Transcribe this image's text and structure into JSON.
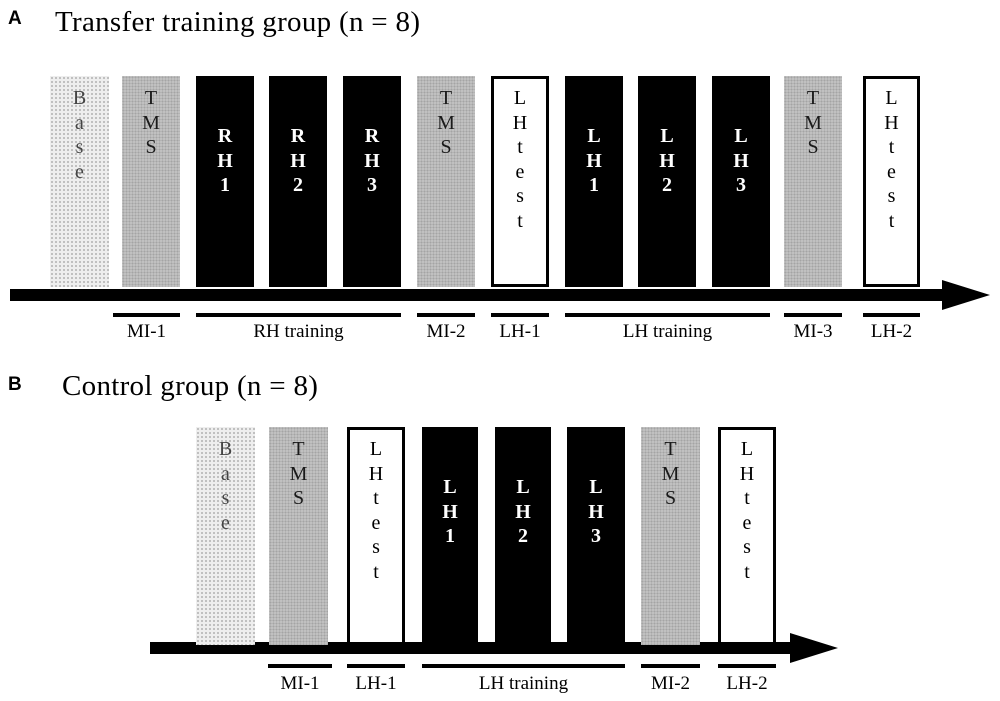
{
  "panels": [
    {
      "letter": "A",
      "title": "Transfer training group (n = 8)",
      "blocks": [
        {
          "type": "base",
          "rows": [
            "B",
            "a",
            "s",
            "e"
          ]
        },
        {
          "type": "tms",
          "rows": [
            "T",
            "M",
            "S"
          ]
        },
        {
          "type": "train",
          "rows": [
            "R",
            "H",
            "1"
          ]
        },
        {
          "type": "train",
          "rows": [
            "R",
            "H",
            "2"
          ]
        },
        {
          "type": "train",
          "rows": [
            "R",
            "H",
            "3"
          ]
        },
        {
          "type": "tms",
          "rows": [
            "T",
            "M",
            "S"
          ]
        },
        {
          "type": "test",
          "rows": [
            "L",
            "H",
            "t",
            "e",
            "s",
            "t"
          ]
        },
        {
          "type": "train",
          "rows": [
            "L",
            "H",
            "1"
          ]
        },
        {
          "type": "train",
          "rows": [
            "L",
            "H",
            "2"
          ]
        },
        {
          "type": "train",
          "rows": [
            "L",
            "H",
            "3"
          ]
        },
        {
          "type": "tms",
          "rows": [
            "T",
            "M",
            "S"
          ]
        },
        {
          "type": "test",
          "rows": [
            "L",
            "H",
            "t",
            "e",
            "s",
            "t"
          ]
        }
      ],
      "phases": [
        "MI-1",
        "RH training",
        "MI-2",
        "LH-1",
        "LH training",
        "MI-3",
        "LH-2"
      ]
    },
    {
      "letter": "B",
      "title": "Control group (n = 8)",
      "blocks": [
        {
          "type": "base",
          "rows": [
            "B",
            "a",
            "s",
            "e"
          ]
        },
        {
          "type": "tms",
          "rows": [
            "T",
            "M",
            "S"
          ]
        },
        {
          "type": "test",
          "rows": [
            "L",
            "H",
            "t",
            "e",
            "s",
            "t"
          ]
        },
        {
          "type": "train",
          "rows": [
            "L",
            "H",
            "1"
          ]
        },
        {
          "type": "train",
          "rows": [
            "L",
            "H",
            "2"
          ]
        },
        {
          "type": "train",
          "rows": [
            "L",
            "H",
            "3"
          ]
        },
        {
          "type": "tms",
          "rows": [
            "T",
            "M",
            "S"
          ]
        },
        {
          "type": "test",
          "rows": [
            "L",
            "H",
            "t",
            "e",
            "s",
            "t"
          ]
        }
      ],
      "phases": [
        "MI-1",
        "LH-1",
        "LH training",
        "MI-2",
        "LH-2"
      ]
    }
  ]
}
